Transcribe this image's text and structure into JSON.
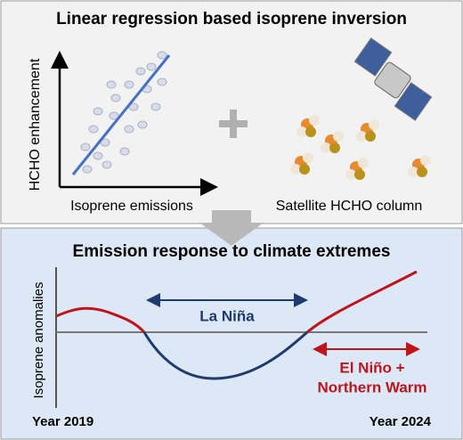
{
  "top_panel": {
    "title": "Linear regression based isoprene inversion",
    "y_label": "HCHO enhancement",
    "x_label": "Isoprene emissions",
    "satellite_label": "Satellite HCHO column"
  },
  "bottom_panel": {
    "title": "Emission response to climate extremes",
    "y_label": "Isoprene anomalies",
    "la_nina": "La Niña",
    "el_nino_lines": [
      "El Niño +",
      "Northern Warm"
    ],
    "start_label": "Year 2019",
    "end_label": "Year 2024"
  }
}
